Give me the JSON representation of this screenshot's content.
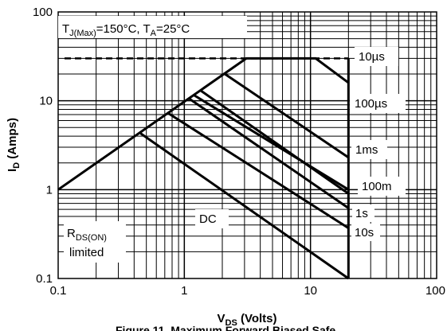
{
  "chart_data": {
    "type": "line",
    "title": "",
    "x_scale": "log",
    "y_scale": "log",
    "xlim": [
      0.1,
      100
    ],
    "ylim": [
      0.1,
      100
    ],
    "grid": true,
    "x_tick_labels": [
      "0.1",
      "1",
      "10",
      "100"
    ],
    "y_tick_labels": [
      "0.1",
      "1",
      "10",
      "100"
    ],
    "xlabel": {
      "main": "V",
      "sub": "DS",
      "rest": " (Volts)"
    },
    "ylabel": {
      "main": "I",
      "sub": "D",
      "rest": " (Amps)"
    },
    "condition_note": {
      "p1": "T",
      "s1": "J(Max)",
      "p2": "=150°C, T",
      "s2": "A",
      "p3": "=25°C"
    },
    "rds_on_label": {
      "main": "R",
      "sub": "DS(ON)",
      "line2": "limited"
    },
    "current_limit": {
      "value": 30,
      "x_range": [
        0.1,
        20
      ]
    },
    "voltage_limit": {
      "value": 20
    },
    "series": [
      {
        "name": "10µs",
        "points": [
          [
            0.1,
            1
          ],
          [
            3.1,
            30
          ],
          [
            11,
            30
          ],
          [
            20,
            16
          ]
        ]
      },
      {
        "name": "100µs",
        "points": [
          [
            2.1,
            20
          ],
          [
            20,
            2.3
          ]
        ]
      },
      {
        "name": "1ms",
        "points": [
          [
            1.2,
            11.5
          ],
          [
            20,
            1.0
          ]
        ]
      },
      {
        "name": "100m",
        "points": [
          [
            1.35,
            13
          ],
          [
            20,
            0.9
          ]
        ]
      },
      {
        "name": "1s",
        "points": [
          [
            1.1,
            10.5
          ],
          [
            20,
            0.62
          ]
        ]
      },
      {
        "name": "10s",
        "points": [
          [
            0.75,
            7.2
          ],
          [
            20,
            0.37
          ]
        ]
      },
      {
        "name": "DC",
        "points": [
          [
            0.45,
            4.3
          ],
          [
            20,
            0.1
          ]
        ]
      }
    ],
    "curve_labels": [
      "10µs",
      "100µs",
      "1ms",
      "100m",
      "1s",
      "10s",
      "DC"
    ]
  },
  "caption": "Figure 11. Maximum Forward Biased Safe"
}
